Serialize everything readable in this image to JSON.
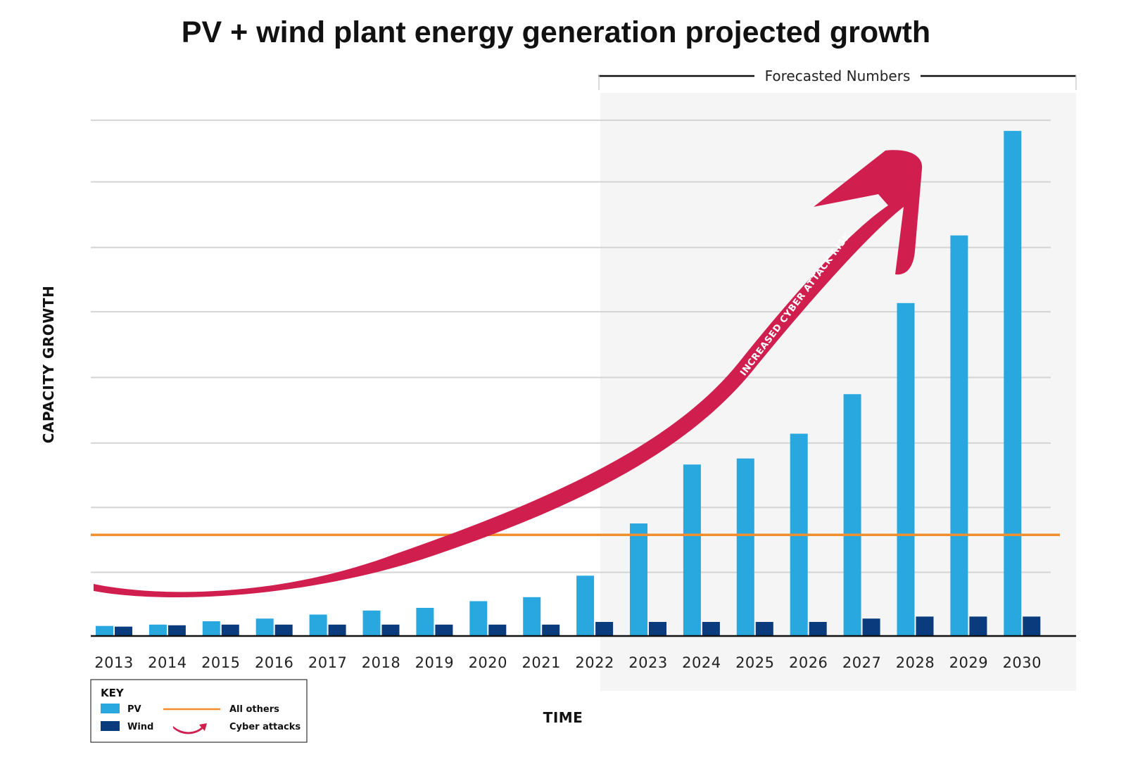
{
  "chart_data": {
    "type": "bar",
    "title": "PV + wind plant energy generation projected growth",
    "xlabel": "TIME",
    "ylabel": "CAPACITY GROWTH",
    "categories": [
      "2013",
      "2014",
      "2015",
      "2016",
      "2017",
      "2018",
      "2019",
      "2020",
      "2021",
      "2022",
      "2023",
      "2024",
      "2025",
      "2026",
      "2027",
      "2028",
      "2029",
      "2030"
    ],
    "series": [
      {
        "name": "PV",
        "color": "#29a8e0",
        "values": [
          1.5,
          1.7,
          2.2,
          2.6,
          3.2,
          3.8,
          4.2,
          5.2,
          5.8,
          9.0,
          16.8,
          25.6,
          26.5,
          30.2,
          36.1,
          49.7,
          59.8,
          75.4
        ]
      },
      {
        "name": "Wind",
        "color": "#0a3c7d",
        "values": [
          1.4,
          1.6,
          1.7,
          1.7,
          1.7,
          1.7,
          1.7,
          1.7,
          1.7,
          2.1,
          2.1,
          2.1,
          2.1,
          2.1,
          2.6,
          2.9,
          2.9,
          2.9
        ]
      }
    ],
    "reference_line": {
      "name": "All others",
      "value": 15.1,
      "color": "#f18f2e"
    },
    "ylim": [
      0,
      79.4
    ],
    "grid": true,
    "forecast": {
      "label": "Forecasted Numbers",
      "from": "2023",
      "to": "2030"
    },
    "annotation": {
      "label": "INCREASED CYBER ATTACK RISK",
      "color": "#d01f4f"
    },
    "legend": {
      "title": "KEY",
      "placement": "bottom-left",
      "items": [
        {
          "label": "PV",
          "kind": "bar",
          "color": "#29a8e0"
        },
        {
          "label": "Wind",
          "kind": "bar",
          "color": "#0a3c7d"
        },
        {
          "label": "All others",
          "kind": "line",
          "color": "#f18f2e"
        },
        {
          "label": "Cyber attacks",
          "kind": "arrow",
          "color": "#d01f4f"
        }
      ]
    }
  }
}
